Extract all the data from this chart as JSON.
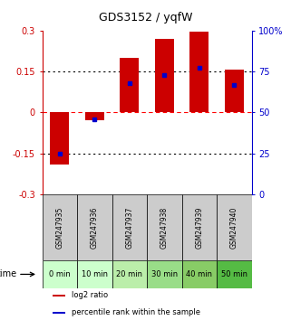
{
  "title": "GDS3152 / yqfW",
  "samples": [
    "GSM247935",
    "GSM247936",
    "GSM247937",
    "GSM247938",
    "GSM247939",
    "GSM247940"
  ],
  "time_labels": [
    "0 min",
    "10 min",
    "20 min",
    "30 min",
    "40 min",
    "50 min"
  ],
  "log2_ratio": [
    -0.19,
    -0.03,
    0.2,
    0.27,
    0.295,
    0.155
  ],
  "percentile_rank": [
    25,
    46,
    68,
    73,
    77,
    67
  ],
  "bar_color": "#cc0000",
  "dot_color": "#0000cc",
  "ylim_left": [
    -0.3,
    0.3
  ],
  "ylim_right": [
    0,
    100
  ],
  "yticks_left": [
    -0.3,
    -0.15,
    0,
    0.15,
    0.3
  ],
  "yticks_right": [
    0,
    25,
    50,
    75,
    100
  ],
  "ytick_labels_left": [
    "-0.3",
    "-0.15",
    "0",
    "0.15",
    "0.3"
  ],
  "ytick_labels_right": [
    "0",
    "25",
    "50",
    "75",
    "100%"
  ],
  "hlines": [
    -0.15,
    0,
    0.15
  ],
  "hline_styles": [
    "dotted",
    "dashed",
    "dotted"
  ],
  "hline_colors": [
    "black",
    "red",
    "black"
  ],
  "cell_colors_time": [
    "#ccffcc",
    "#ccffcc",
    "#bbeeaa",
    "#99dd88",
    "#88cc66",
    "#55bb44"
  ],
  "cell_color_gsm": "#cccccc",
  "background_color": "#ffffff",
  "left_axis_color": "#cc0000",
  "right_axis_color": "#0000cc",
  "bar_width": 0.55
}
